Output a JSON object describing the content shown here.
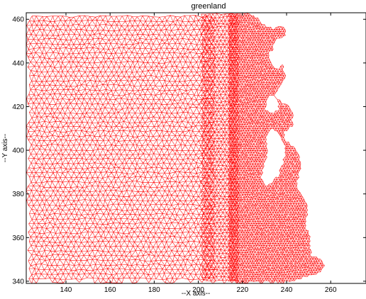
{
  "title": "greenland",
  "xlabel": "--X axis--",
  "ylabel": "--Y axis--",
  "mesh_color": "#ff0000",
  "axes_color": "#000000",
  "x_range": [
    122,
    276
  ],
  "y_range": [
    339,
    463
  ],
  "x_ticks": [
    140,
    160,
    180,
    200,
    220,
    240,
    260
  ],
  "y_ticks": [
    340,
    360,
    380,
    400,
    420,
    440,
    460
  ],
  "chart_data": {
    "type": "mesh",
    "title": "greenland",
    "xlabel": "--X axis--",
    "ylabel": "--Y axis--",
    "xlim": [
      122,
      276
    ],
    "ylim": [
      339,
      463
    ],
    "coastline": [
      [
        222,
        463
      ],
      [
        227,
        461
      ],
      [
        230,
        458
      ],
      [
        234,
        456
      ],
      [
        237,
        457
      ],
      [
        240,
        456
      ],
      [
        240,
        452
      ],
      [
        236,
        451
      ],
      [
        234,
        446
      ],
      [
        238,
        443
      ],
      [
        239,
        438
      ],
      [
        240,
        433
      ],
      [
        237,
        428
      ],
      [
        235,
        425
      ],
      [
        238,
        422
      ],
      [
        241,
        421
      ],
      [
        243,
        417
      ],
      [
        243,
        411
      ],
      [
        239,
        408
      ],
      [
        240,
        405
      ],
      [
        244,
        401
      ],
      [
        246,
        397
      ],
      [
        247,
        393
      ],
      [
        246,
        389
      ],
      [
        245,
        382
      ],
      [
        249,
        377
      ],
      [
        250,
        372
      ],
      [
        249,
        366
      ],
      [
        251,
        361
      ],
      [
        251,
        357
      ],
      [
        252,
        352
      ],
      [
        256,
        351
      ],
      [
        258,
        347
      ],
      [
        256,
        344
      ],
      [
        253,
        343
      ],
      [
        249,
        342
      ],
      [
        244,
        340
      ],
      [
        239,
        339
      ],
      [
        122,
        339
      ],
      [
        122,
        463
      ]
    ],
    "holes": [
      [
        [
          234,
          446
        ],
        [
          237,
          445
        ],
        [
          238,
          440
        ],
        [
          235,
          437
        ],
        [
          233,
          440
        ],
        [
          232,
          444
        ]
      ],
      [
        [
          233,
          425
        ],
        [
          236,
          423
        ],
        [
          236,
          419
        ],
        [
          233,
          417
        ],
        [
          231,
          419
        ],
        [
          231,
          423
        ]
      ],
      [
        [
          233,
          410
        ],
        [
          236,
          407
        ],
        [
          239,
          402
        ],
        [
          238,
          394
        ],
        [
          236,
          389
        ],
        [
          233,
          385
        ],
        [
          230,
          384
        ],
        [
          229,
          388
        ],
        [
          230,
          393
        ],
        [
          232,
          399
        ],
        [
          231,
          405
        ]
      ]
    ]
  }
}
